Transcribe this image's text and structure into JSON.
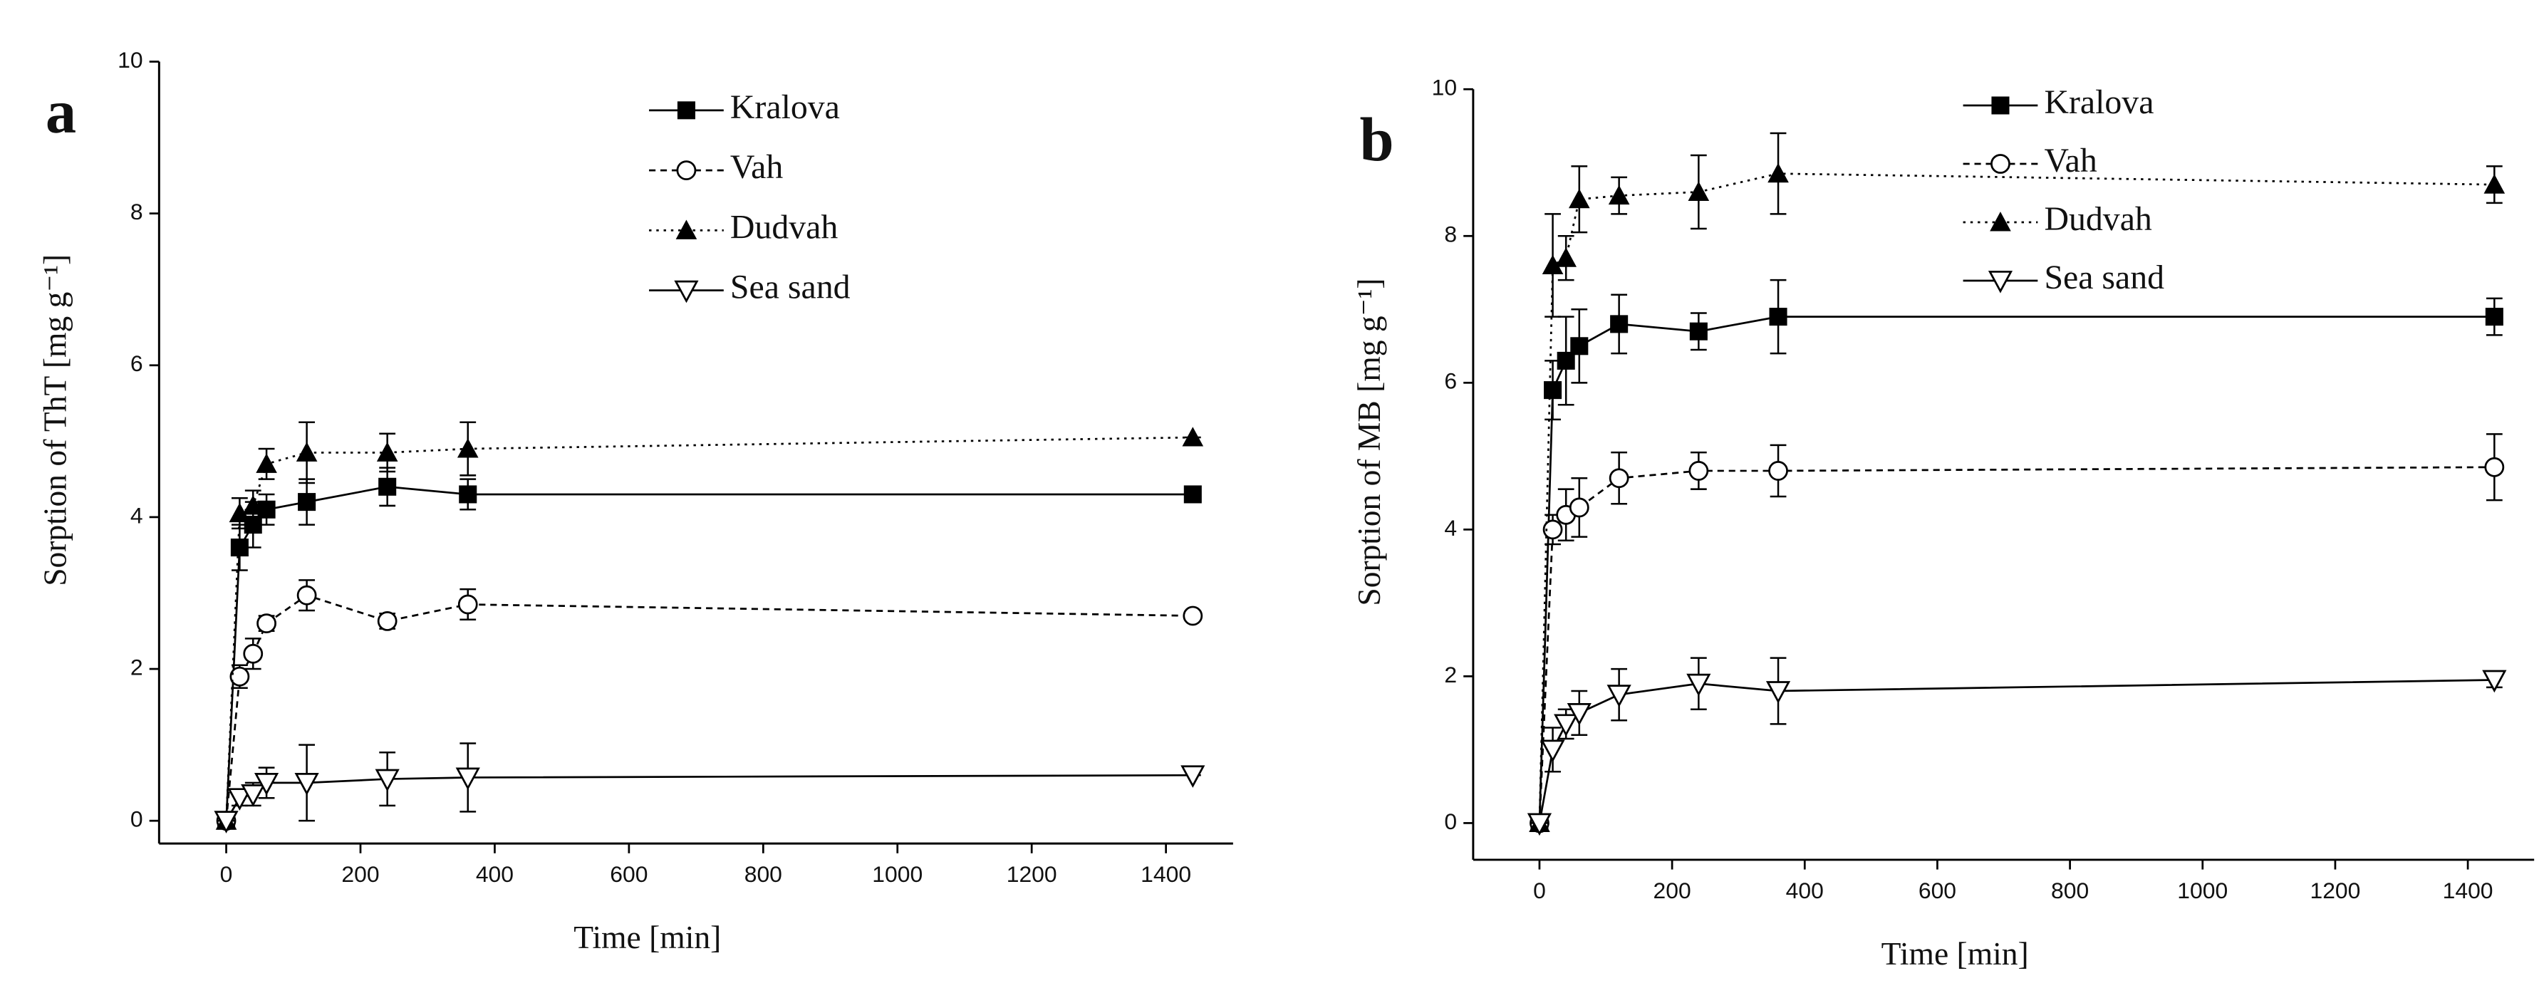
{
  "chart_data": [
    {
      "type": "line",
      "panel_label": "a",
      "x_label": "Time [min]",
      "y_label": "Sorption of ThT [mg g⁻¹]",
      "x": [
        0,
        20,
        40,
        60,
        120,
        240,
        360,
        1440
      ],
      "xlim": [
        -100,
        1500
      ],
      "xticks": [
        0,
        200,
        400,
        600,
        800,
        1000,
        1200,
        1400
      ],
      "ylim": [
        -0.3,
        10
      ],
      "yticks": [
        0,
        2,
        4,
        6,
        8,
        10
      ],
      "series": [
        {
          "name": "Kralova",
          "color": "#000000",
          "line_style": "solid",
          "marker": "square-filled",
          "values": [
            0,
            3.6,
            3.9,
            4.1,
            4.2,
            4.4,
            4.3,
            4.3
          ],
          "errors": [
            0,
            0.3,
            0.3,
            0.2,
            0.3,
            0.25,
            0.2,
            0
          ]
        },
        {
          "name": "Vah",
          "color": "#000000",
          "line_style": "dashed",
          "marker": "circle-open",
          "values": [
            0,
            1.9,
            2.2,
            2.6,
            2.97,
            2.63,
            2.85,
            2.7
          ],
          "errors": [
            0,
            0.15,
            0.2,
            0.1,
            0.2,
            0.1,
            0.2,
            0
          ]
        },
        {
          "name": "Dudvah",
          "color": "#000000",
          "line_style": "dotted",
          "marker": "triangle-filled",
          "values": [
            0,
            4.05,
            4.15,
            4.7,
            4.85,
            4.85,
            4.9,
            5.05
          ],
          "errors": [
            0,
            0.2,
            0.2,
            0.2,
            0.4,
            0.25,
            0.35,
            0
          ]
        },
        {
          "name": "Sea sand",
          "color": "#000000",
          "line_style": "solid",
          "marker": "triangle-down-open",
          "values": [
            0,
            0.3,
            0.35,
            0.5,
            0.5,
            0.55,
            0.57,
            0.6
          ],
          "errors": [
            0,
            0.1,
            0.15,
            0.2,
            0.5,
            0.35,
            0.45,
            0
          ]
        }
      ]
    },
    {
      "type": "line",
      "panel_label": "b",
      "x_label": "Time [min]",
      "y_label": "Sorption of MB [mg g⁻¹]",
      "x": [
        0,
        20,
        40,
        60,
        120,
        240,
        360,
        1440
      ],
      "xlim": [
        -100,
        1500
      ],
      "xticks": [
        0,
        200,
        400,
        600,
        800,
        1000,
        1200,
        1400
      ],
      "ylim": [
        -0.5,
        10
      ],
      "yticks": [
        0,
        2,
        4,
        6,
        8,
        10
      ],
      "series": [
        {
          "name": "Kralova",
          "color": "#000000",
          "line_style": "solid",
          "marker": "square-filled",
          "values": [
            0,
            5.9,
            6.3,
            6.5,
            6.8,
            6.7,
            6.9,
            6.9
          ],
          "errors": [
            0,
            0.4,
            0.6,
            0.5,
            0.4,
            0.25,
            0.5,
            0.25
          ]
        },
        {
          "name": "Vah",
          "color": "#000000",
          "line_style": "dashed",
          "marker": "circle-open",
          "values": [
            0,
            4.0,
            4.2,
            4.3,
            4.7,
            4.8,
            4.8,
            4.85
          ],
          "errors": [
            0,
            0.2,
            0.35,
            0.4,
            0.35,
            0.25,
            0.35,
            0.45
          ]
        },
        {
          "name": "Dudvah",
          "color": "#000000",
          "line_style": "dotted",
          "marker": "triangle-filled",
          "values": [
            0,
            7.6,
            7.7,
            8.5,
            8.55,
            8.6,
            8.85,
            8.7
          ],
          "errors": [
            0,
            0.7,
            0.3,
            0.45,
            0.25,
            0.5,
            0.55,
            0.25
          ]
        },
        {
          "name": "Sea sand",
          "color": "#000000",
          "line_style": "solid",
          "marker": "triangle-down-open",
          "values": [
            0,
            1.0,
            1.35,
            1.5,
            1.75,
            1.9,
            1.8,
            1.95
          ],
          "errors": [
            0,
            0.3,
            0.2,
            0.3,
            0.35,
            0.35,
            0.45,
            0.1
          ]
        }
      ]
    }
  ]
}
